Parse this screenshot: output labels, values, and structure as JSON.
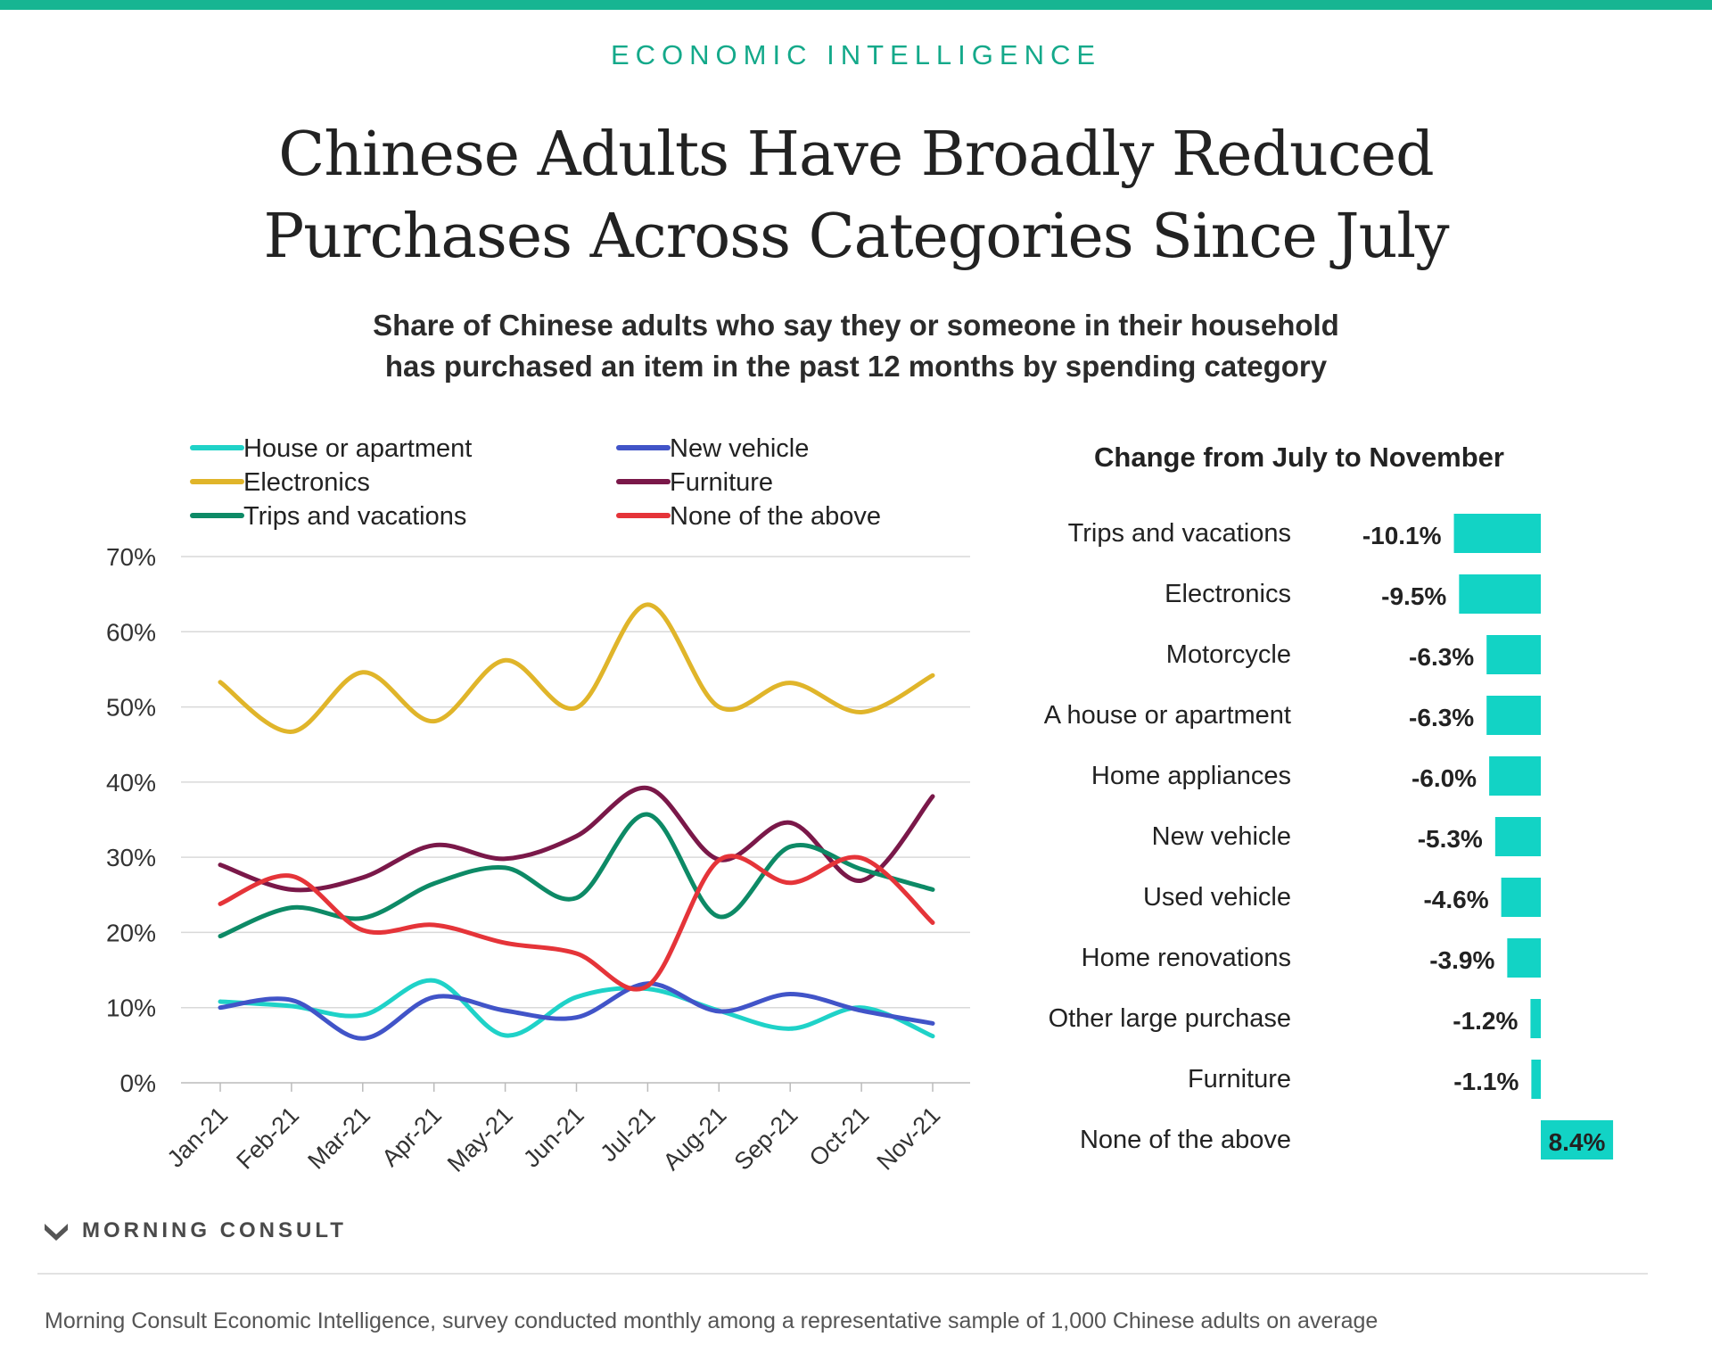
{
  "header": {
    "kicker": "ECONOMIC INTELLIGENCE",
    "title_line1": "Chinese Adults Have Broadly Reduced",
    "title_line2": "Purchases Across Categories Since July",
    "subtitle_line1": "Share of Chinese adults who say they or someone in their household",
    "subtitle_line2": "has purchased an item in the past 12 months by spending category"
  },
  "colors": {
    "accent": "#17b592",
    "bar": "#12d3c5",
    "grid": "#d9d9d9"
  },
  "chart_data": [
    {
      "type": "line",
      "title": "",
      "xlabel": "",
      "ylabel": "",
      "ylim": [
        0,
        70
      ],
      "ytick_labels": [
        "0%",
        "10%",
        "20%",
        "30%",
        "40%",
        "50%",
        "60%",
        "70%"
      ],
      "grid": "horizontal",
      "legend": "top",
      "categories": [
        "Jan-21",
        "Feb-21",
        "Mar-21",
        "Apr-21",
        "May-21",
        "Jun-21",
        "Jul-21",
        "Aug-21",
        "Sep-21",
        "Oct-21",
        "Nov-21"
      ],
      "series": [
        {
          "name": "House or apartment",
          "color": "#1fd2c8",
          "values": [
            10.8,
            10.2,
            9.0,
            13.6,
            6.3,
            11.4,
            12.5,
            9.6,
            7.2,
            10.0,
            6.2
          ]
        },
        {
          "name": "New vehicle",
          "color": "#4154c8",
          "values": [
            10.0,
            11.0,
            5.9,
            11.4,
            9.6,
            8.7,
            13.2,
            9.5,
            11.8,
            9.6,
            7.9
          ]
        },
        {
          "name": "Electronics",
          "color": "#e0b52a",
          "values": [
            53.3,
            46.7,
            54.6,
            48.1,
            56.2,
            49.9,
            63.6,
            50.0,
            53.2,
            49.3,
            54.2
          ]
        },
        {
          "name": "Furniture",
          "color": "#7a1849",
          "values": [
            29.0,
            25.7,
            27.3,
            31.6,
            29.8,
            32.8,
            39.2,
            29.7,
            34.6,
            26.9,
            38.1
          ]
        },
        {
          "name": "Trips and vacations",
          "color": "#0d8a66",
          "values": [
            19.5,
            23.3,
            21.9,
            26.5,
            28.6,
            24.6,
            35.7,
            22.1,
            31.4,
            28.4,
            25.7
          ]
        },
        {
          "name": "None of the above",
          "color": "#e53439",
          "values": [
            23.8,
            27.5,
            20.3,
            21.0,
            18.6,
            17.2,
            12.9,
            29.6,
            26.6,
            29.9,
            21.3
          ]
        }
      ]
    },
    {
      "type": "bar",
      "orientation": "horizontal",
      "title": "Change from July to November",
      "categories": [
        "Trips and vacations",
        "Electronics",
        "Motorcycle",
        "A house or apartment",
        "Home appliances",
        "New vehicle",
        "Used vehicle",
        "Home renovations",
        "Other large purchase",
        "Furniture",
        "None of the above"
      ],
      "values": [
        -10.1,
        -9.5,
        -6.3,
        -6.3,
        -6.0,
        -5.3,
        -4.6,
        -3.9,
        -1.2,
        -1.1,
        8.4
      ],
      "value_labels": [
        "-10.1%",
        "-9.5%",
        "-6.3%",
        "-6.3%",
        "-6.0%",
        "-5.3%",
        "-4.6%",
        "-3.9%",
        "-1.2%",
        "-1.1%",
        "8.4%"
      ]
    }
  ],
  "footer": {
    "brand": "MORNING CONSULT",
    "source": "Morning Consult Economic Intelligence, survey conducted monthly among a representative sample of 1,000 Chinese adults on average"
  }
}
